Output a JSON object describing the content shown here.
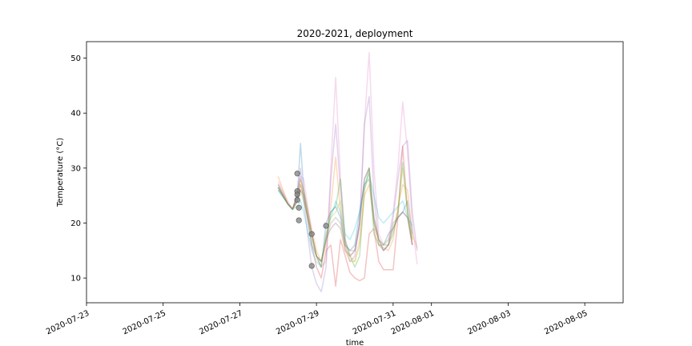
{
  "chart_data": {
    "type": "line",
    "title": "2020-2021, deployment",
    "xlabel": "time",
    "ylabel": "Temperature (°C)",
    "xlim": [
      "2020-07-23",
      "2020-08-06"
    ],
    "ylim": [
      5.5,
      53
    ],
    "x_ticks": [
      "2020-07-23",
      "2020-07-25",
      "2020-07-27",
      "2020-07-29",
      "2020-07-31",
      "2020-08-01",
      "2020-08-03",
      "2020-08-05"
    ],
    "y_ticks": [
      10,
      20,
      30,
      40,
      50
    ],
    "grid": false,
    "legend": "none",
    "times": [
      "2020-07-28T00:00",
      "2020-07-28T06:00",
      "2020-07-28T09:00",
      "2020-07-28T12:00",
      "2020-07-28T14:00",
      "2020-07-28T16:00",
      "2020-07-28T21:00",
      "2020-07-29T00:00",
      "2020-07-29T03:00",
      "2020-07-29T06:00",
      "2020-07-29T09:00",
      "2020-07-29T12:00",
      "2020-07-29T15:00",
      "2020-07-29T18:00",
      "2020-07-29T21:00",
      "2020-07-30T00:00",
      "2020-07-30T03:00",
      "2020-07-30T06:00",
      "2020-07-30T09:00",
      "2020-07-30T12:00",
      "2020-07-30T15:00",
      "2020-07-30T18:00",
      "2020-07-30T21:00",
      "2020-07-31T00:00",
      "2020-07-31T03:00",
      "2020-07-31T06:00",
      "2020-07-31T09:00",
      "2020-07-31T12:00",
      "2020-07-31T15:00",
      "2020-07-31T18:00",
      "2020-07-31T21:00"
    ],
    "series": [
      {
        "color": "#e377c2",
        "values": [
          27.5,
          24,
          22.5,
          26,
          28.5,
          28,
          18,
          14,
          12,
          13,
          30,
          46.5,
          28,
          17,
          14,
          15,
          19,
          38,
          51,
          30,
          18,
          16,
          17,
          22,
          30,
          42,
          33,
          20,
          12.5,
          null,
          null
        ]
      },
      {
        "color": "#9467bd",
        "values": [
          27,
          23.5,
          22.5,
          25,
          30,
          24,
          12,
          9,
          7.5,
          12,
          28,
          38,
          26,
          16,
          13,
          14,
          20,
          38,
          43,
          25,
          16,
          15,
          16,
          21,
          28,
          34,
          35,
          22,
          15,
          null,
          null
        ]
      },
      {
        "color": "#d62728",
        "values": [
          26.5,
          23.5,
          22.5,
          24,
          27,
          25,
          16,
          12,
          10,
          15,
          16,
          8.5,
          17,
          14,
          11,
          10,
          9.5,
          10,
          18,
          19,
          13,
          11.5,
          11.5,
          11.5,
          21,
          34,
          22,
          16,
          null,
          null,
          null
        ]
      },
      {
        "color": "#ff7f0e",
        "values": [
          28.5,
          23.5,
          22.5,
          25,
          28,
          26,
          19,
          15,
          13,
          16,
          23,
          32,
          22,
          15,
          13,
          13,
          16,
          25,
          27,
          20,
          16,
          15.5,
          15,
          17,
          23,
          27,
          26,
          18,
          15.5,
          null,
          null
        ]
      },
      {
        "color": "#2ca02c",
        "values": [
          26.5,
          23.5,
          22.5,
          24,
          26,
          24,
          18,
          14,
          13,
          17,
          22,
          23,
          28,
          17,
          14,
          12,
          14,
          26,
          30,
          18,
          16,
          16,
          16,
          18,
          22,
          31,
          22,
          17,
          null,
          null,
          null
        ]
      },
      {
        "color": "#17becf",
        "values": [
          26,
          23.5,
          22.5,
          23,
          24,
          22,
          15,
          13,
          12,
          18,
          21,
          24,
          22,
          18,
          17,
          19,
          22,
          27,
          29,
          25,
          21,
          20,
          21,
          22,
          23,
          24,
          21,
          19.5,
          null,
          null,
          null
        ]
      },
      {
        "color": "#1f77b4",
        "values": [
          26,
          23.5,
          22.5,
          25,
          34.5,
          26,
          16,
          14,
          12,
          20,
          22,
          23,
          21,
          16,
          15,
          16,
          22,
          27,
          28,
          20,
          17,
          16,
          18,
          19,
          21,
          22,
          24,
          18,
          null,
          null,
          null
        ]
      },
      {
        "color": "#8c564b",
        "values": [
          26.5,
          23.5,
          22.5,
          24,
          26,
          25,
          18,
          14,
          13,
          17,
          19,
          20,
          19,
          15,
          14,
          15,
          20,
          28,
          30,
          21,
          17,
          15,
          16,
          19,
          21,
          22,
          21,
          16,
          null,
          null,
          null
        ]
      },
      {
        "color": "#7f7f7f",
        "values": [
          27,
          23.5,
          22.5,
          25,
          28,
          26,
          18,
          14,
          13,
          17,
          20,
          21,
          20,
          16,
          15,
          15,
          20,
          28,
          30,
          21,
          17,
          15,
          16,
          20,
          21,
          22,
          21,
          16,
          null,
          null,
          null
        ]
      },
      {
        "color": "#bcbd22",
        "values": [
          26.5,
          23.5,
          22.5,
          24,
          27,
          25,
          17,
          14,
          12,
          18,
          21,
          22,
          24,
          16,
          14,
          13,
          17,
          26,
          29,
          20,
          17,
          16,
          17,
          19,
          22,
          30,
          22,
          17,
          null,
          null,
          null
        ]
      }
    ],
    "markers": {
      "color": "#7f7f7f",
      "points": [
        {
          "x": "2020-07-28T12:00",
          "y": 29.0
        },
        {
          "x": "2020-07-28T12:00",
          "y": 25.8
        },
        {
          "x": "2020-07-28T12:00",
          "y": 25.2
        },
        {
          "x": "2020-07-28T12:00",
          "y": 24.2
        },
        {
          "x": "2020-07-28T13:00",
          "y": 22.8
        },
        {
          "x": "2020-07-28T13:00",
          "y": 20.5
        },
        {
          "x": "2020-07-28T21:00",
          "y": 18.0
        },
        {
          "x": "2020-07-28T21:00",
          "y": 12.2
        },
        {
          "x": "2020-07-29T06:00",
          "y": 19.5
        }
      ]
    }
  }
}
